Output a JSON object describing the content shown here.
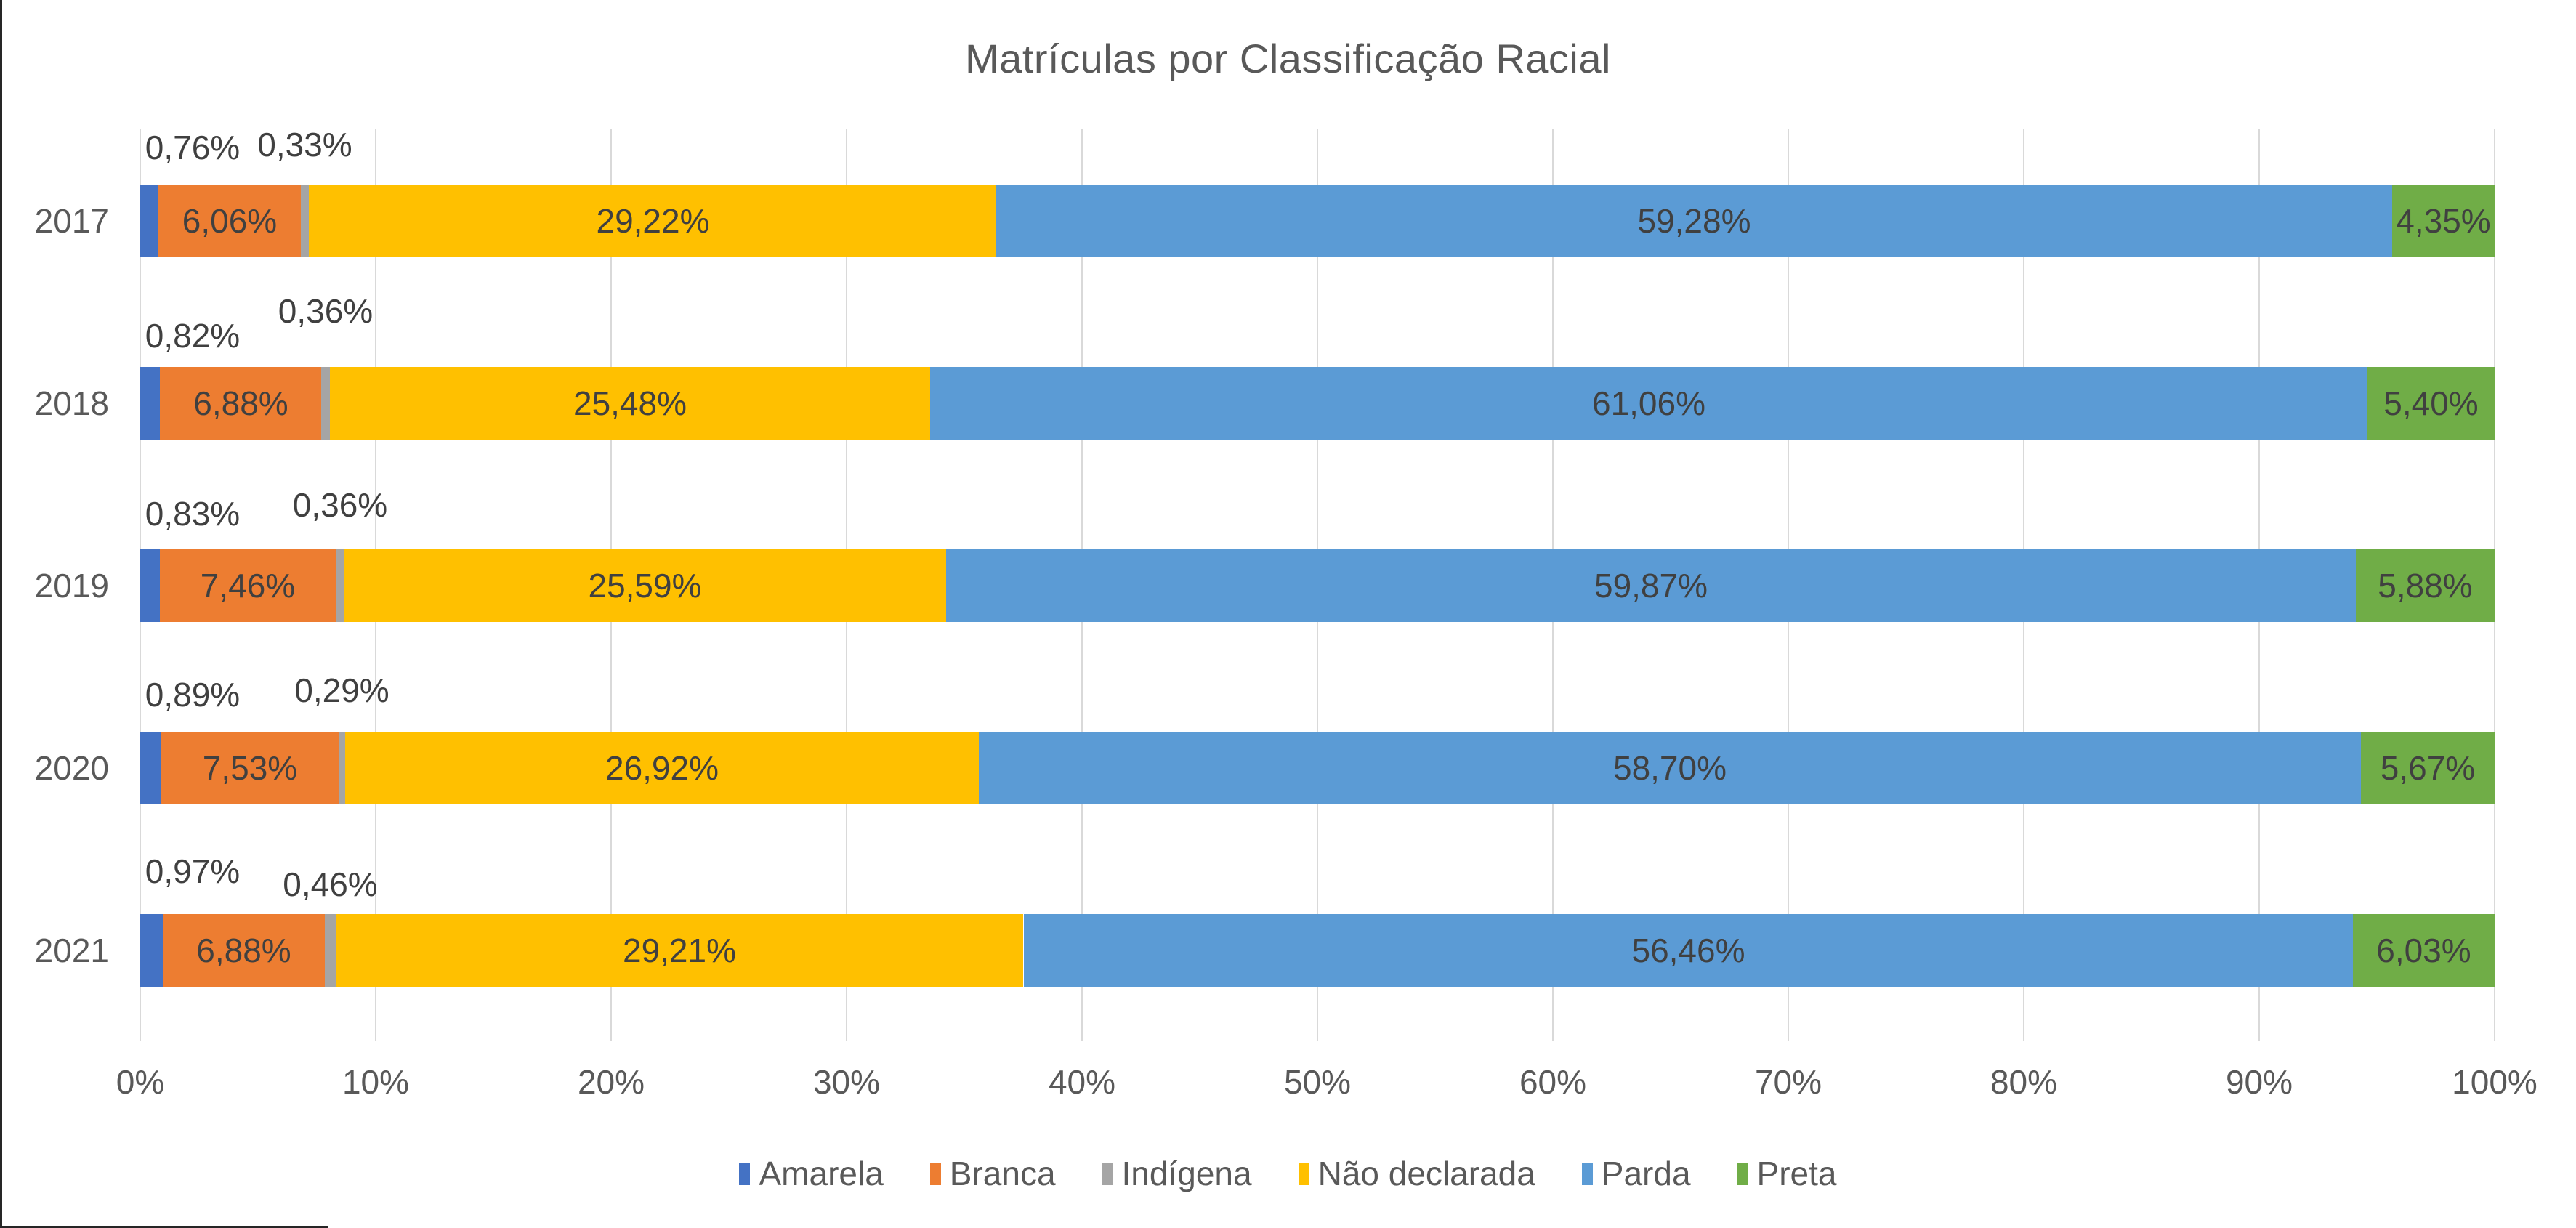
{
  "title": "Matrículas por Classificação Racial",
  "chart_data": {
    "type": "bar",
    "subtype": "horizontal-stacked-100",
    "title": "Matrículas por Classificação Racial",
    "categories": [
      "2017",
      "2018",
      "2019",
      "2020",
      "2021"
    ],
    "series": [
      {
        "name": "Amarela",
        "slug": "amarela",
        "color": "#4472C4",
        "values": [
          0.76,
          0.82,
          0.83,
          0.89,
          0.97
        ],
        "labels": [
          "0,76%",
          "0,82%",
          "0,83%",
          "0,89%",
          "0,97%"
        ]
      },
      {
        "name": "Branca",
        "slug": "branca",
        "color": "#ED7D31",
        "values": [
          6.06,
          6.88,
          7.46,
          7.53,
          6.88
        ],
        "labels": [
          "6,06%",
          "6,88%",
          "7,46%",
          "7,53%",
          "6,88%"
        ]
      },
      {
        "name": "Indígena",
        "slug": "indigena",
        "color": "#A5A5A5",
        "values": [
          0.33,
          0.36,
          0.36,
          0.29,
          0.46
        ],
        "labels": [
          "0,33%",
          "0,36%",
          "0,36%",
          "0,29%",
          "0,46%"
        ]
      },
      {
        "name": "Não declarada",
        "slug": "nao-declarada",
        "color": "#FFC000",
        "values": [
          29.22,
          25.48,
          25.59,
          26.92,
          29.21
        ],
        "labels": [
          "29,22%",
          "25,48%",
          "25,59%",
          "26,92%",
          "29,21%"
        ]
      },
      {
        "name": "Parda",
        "slug": "parda",
        "color": "#5B9BD5",
        "values": [
          59.28,
          61.06,
          59.87,
          58.7,
          56.46
        ],
        "labels": [
          "59,28%",
          "61,06%",
          "59,87%",
          "58,70%",
          "56,46%"
        ]
      },
      {
        "name": "Preta",
        "slug": "preta",
        "color": "#70AD47",
        "values": [
          4.35,
          5.4,
          5.88,
          5.67,
          6.03
        ],
        "labels": [
          "4,35%",
          "5,40%",
          "5,88%",
          "5,67%",
          "6,03%"
        ]
      }
    ],
    "x_ticks": [
      "0%",
      "10%",
      "20%",
      "30%",
      "40%",
      "50%",
      "60%",
      "70%",
      "80%",
      "90%",
      "100%"
    ],
    "xlim": [
      0,
      100
    ],
    "grid": true,
    "gridline_color": "#D9D9D9",
    "text_color": "#595959",
    "data_label_color": "#404040",
    "legend_position": "bottom"
  }
}
